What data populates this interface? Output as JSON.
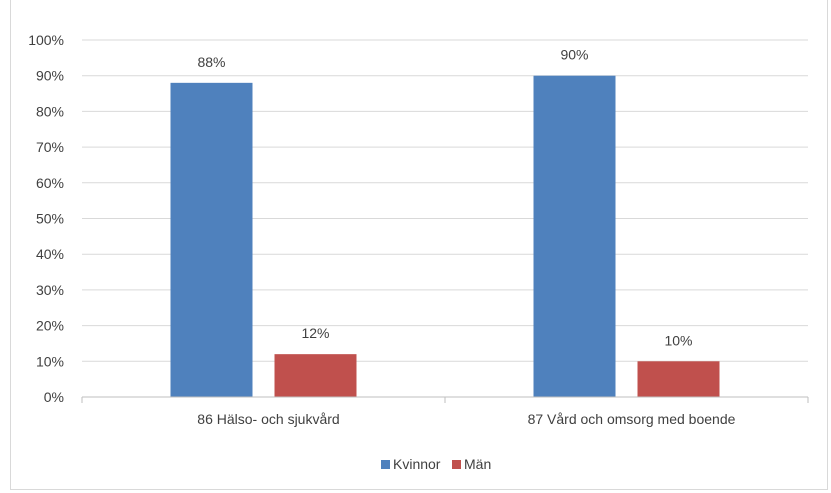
{
  "chart_data": {
    "type": "bar",
    "title": "",
    "categories": [
      "86 Hälso- och sjukvård",
      "87 Vård och omsorg med boende"
    ],
    "series": [
      {
        "name": "Kvinnor",
        "values": [
          88,
          90
        ],
        "labels": [
          "88%",
          "90%"
        ],
        "color": "#4f81bd"
      },
      {
        "name": "Män",
        "values": [
          12,
          10
        ],
        "labels": [
          "12%",
          "10%"
        ],
        "color": "#c0504d"
      }
    ],
    "ylim": [
      0,
      100
    ],
    "yticks": [
      "0%",
      "10%",
      "20%",
      "30%",
      "40%",
      "50%",
      "60%",
      "70%",
      "80%",
      "90%",
      "100%"
    ],
    "grid": true,
    "legend": "bottom",
    "xlabel": "",
    "ylabel": ""
  }
}
